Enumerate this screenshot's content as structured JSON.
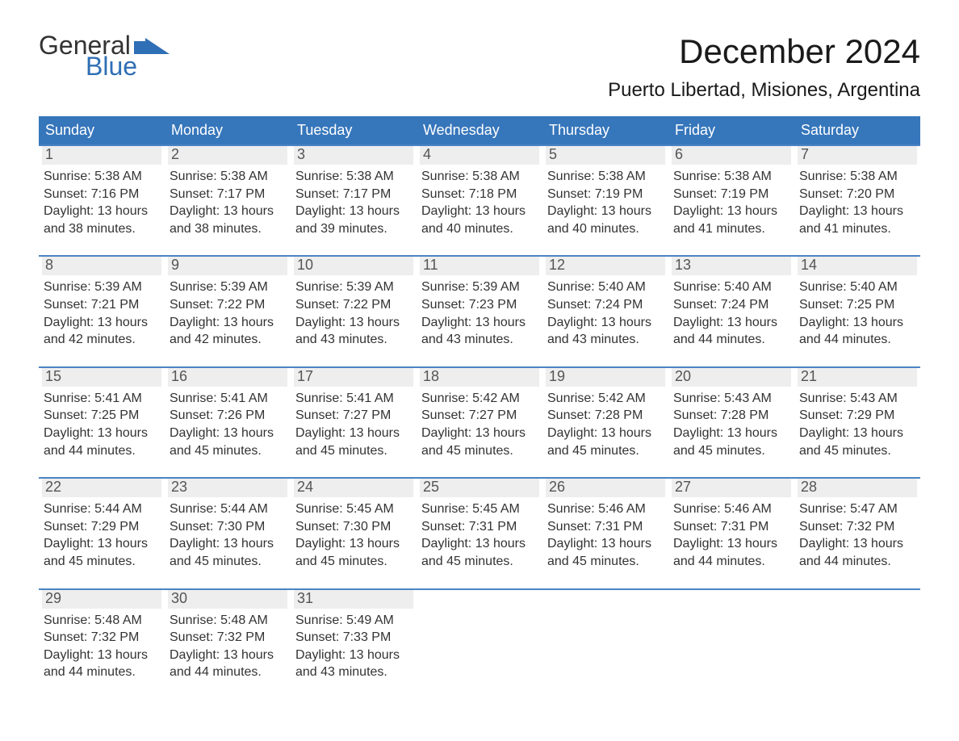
{
  "logo": {
    "text_general": "General",
    "text_blue": "Blue",
    "brand_color": "#2f6fb5"
  },
  "header": {
    "title": "December 2024",
    "location": "Puerto Libertad, Misiones, Argentina",
    "title_fontsize": 42,
    "location_fontsize": 24
  },
  "calendar": {
    "header_bg": "#3676bb",
    "header_fg": "#ffffff",
    "week_border_color": "#4b84c2",
    "daynum_bg": "#eeeeee",
    "daynum_fg": "#555555",
    "body_color": "#333333",
    "weekdays": [
      "Sunday",
      "Monday",
      "Tuesday",
      "Wednesday",
      "Thursday",
      "Friday",
      "Saturday"
    ],
    "weeks": [
      [
        {
          "n": "1",
          "sunrise": "Sunrise: 5:38 AM",
          "sunset": "Sunset: 7:16 PM",
          "daylight1": "Daylight: 13 hours",
          "daylight2": "and 38 minutes."
        },
        {
          "n": "2",
          "sunrise": "Sunrise: 5:38 AM",
          "sunset": "Sunset: 7:17 PM",
          "daylight1": "Daylight: 13 hours",
          "daylight2": "and 38 minutes."
        },
        {
          "n": "3",
          "sunrise": "Sunrise: 5:38 AM",
          "sunset": "Sunset: 7:17 PM",
          "daylight1": "Daylight: 13 hours",
          "daylight2": "and 39 minutes."
        },
        {
          "n": "4",
          "sunrise": "Sunrise: 5:38 AM",
          "sunset": "Sunset: 7:18 PM",
          "daylight1": "Daylight: 13 hours",
          "daylight2": "and 40 minutes."
        },
        {
          "n": "5",
          "sunrise": "Sunrise: 5:38 AM",
          "sunset": "Sunset: 7:19 PM",
          "daylight1": "Daylight: 13 hours",
          "daylight2": "and 40 minutes."
        },
        {
          "n": "6",
          "sunrise": "Sunrise: 5:38 AM",
          "sunset": "Sunset: 7:19 PM",
          "daylight1": "Daylight: 13 hours",
          "daylight2": "and 41 minutes."
        },
        {
          "n": "7",
          "sunrise": "Sunrise: 5:38 AM",
          "sunset": "Sunset: 7:20 PM",
          "daylight1": "Daylight: 13 hours",
          "daylight2": "and 41 minutes."
        }
      ],
      [
        {
          "n": "8",
          "sunrise": "Sunrise: 5:39 AM",
          "sunset": "Sunset: 7:21 PM",
          "daylight1": "Daylight: 13 hours",
          "daylight2": "and 42 minutes."
        },
        {
          "n": "9",
          "sunrise": "Sunrise: 5:39 AM",
          "sunset": "Sunset: 7:22 PM",
          "daylight1": "Daylight: 13 hours",
          "daylight2": "and 42 minutes."
        },
        {
          "n": "10",
          "sunrise": "Sunrise: 5:39 AM",
          "sunset": "Sunset: 7:22 PM",
          "daylight1": "Daylight: 13 hours",
          "daylight2": "and 43 minutes."
        },
        {
          "n": "11",
          "sunrise": "Sunrise: 5:39 AM",
          "sunset": "Sunset: 7:23 PM",
          "daylight1": "Daylight: 13 hours",
          "daylight2": "and 43 minutes."
        },
        {
          "n": "12",
          "sunrise": "Sunrise: 5:40 AM",
          "sunset": "Sunset: 7:24 PM",
          "daylight1": "Daylight: 13 hours",
          "daylight2": "and 43 minutes."
        },
        {
          "n": "13",
          "sunrise": "Sunrise: 5:40 AM",
          "sunset": "Sunset: 7:24 PM",
          "daylight1": "Daylight: 13 hours",
          "daylight2": "and 44 minutes."
        },
        {
          "n": "14",
          "sunrise": "Sunrise: 5:40 AM",
          "sunset": "Sunset: 7:25 PM",
          "daylight1": "Daylight: 13 hours",
          "daylight2": "and 44 minutes."
        }
      ],
      [
        {
          "n": "15",
          "sunrise": "Sunrise: 5:41 AM",
          "sunset": "Sunset: 7:25 PM",
          "daylight1": "Daylight: 13 hours",
          "daylight2": "and 44 minutes."
        },
        {
          "n": "16",
          "sunrise": "Sunrise: 5:41 AM",
          "sunset": "Sunset: 7:26 PM",
          "daylight1": "Daylight: 13 hours",
          "daylight2": "and 45 minutes."
        },
        {
          "n": "17",
          "sunrise": "Sunrise: 5:41 AM",
          "sunset": "Sunset: 7:27 PM",
          "daylight1": "Daylight: 13 hours",
          "daylight2": "and 45 minutes."
        },
        {
          "n": "18",
          "sunrise": "Sunrise: 5:42 AM",
          "sunset": "Sunset: 7:27 PM",
          "daylight1": "Daylight: 13 hours",
          "daylight2": "and 45 minutes."
        },
        {
          "n": "19",
          "sunrise": "Sunrise: 5:42 AM",
          "sunset": "Sunset: 7:28 PM",
          "daylight1": "Daylight: 13 hours",
          "daylight2": "and 45 minutes."
        },
        {
          "n": "20",
          "sunrise": "Sunrise: 5:43 AM",
          "sunset": "Sunset: 7:28 PM",
          "daylight1": "Daylight: 13 hours",
          "daylight2": "and 45 minutes."
        },
        {
          "n": "21",
          "sunrise": "Sunrise: 5:43 AM",
          "sunset": "Sunset: 7:29 PM",
          "daylight1": "Daylight: 13 hours",
          "daylight2": "and 45 minutes."
        }
      ],
      [
        {
          "n": "22",
          "sunrise": "Sunrise: 5:44 AM",
          "sunset": "Sunset: 7:29 PM",
          "daylight1": "Daylight: 13 hours",
          "daylight2": "and 45 minutes."
        },
        {
          "n": "23",
          "sunrise": "Sunrise: 5:44 AM",
          "sunset": "Sunset: 7:30 PM",
          "daylight1": "Daylight: 13 hours",
          "daylight2": "and 45 minutes."
        },
        {
          "n": "24",
          "sunrise": "Sunrise: 5:45 AM",
          "sunset": "Sunset: 7:30 PM",
          "daylight1": "Daylight: 13 hours",
          "daylight2": "and 45 minutes."
        },
        {
          "n": "25",
          "sunrise": "Sunrise: 5:45 AM",
          "sunset": "Sunset: 7:31 PM",
          "daylight1": "Daylight: 13 hours",
          "daylight2": "and 45 minutes."
        },
        {
          "n": "26",
          "sunrise": "Sunrise: 5:46 AM",
          "sunset": "Sunset: 7:31 PM",
          "daylight1": "Daylight: 13 hours",
          "daylight2": "and 45 minutes."
        },
        {
          "n": "27",
          "sunrise": "Sunrise: 5:46 AM",
          "sunset": "Sunset: 7:31 PM",
          "daylight1": "Daylight: 13 hours",
          "daylight2": "and 44 minutes."
        },
        {
          "n": "28",
          "sunrise": "Sunrise: 5:47 AM",
          "sunset": "Sunset: 7:32 PM",
          "daylight1": "Daylight: 13 hours",
          "daylight2": "and 44 minutes."
        }
      ],
      [
        {
          "n": "29",
          "sunrise": "Sunrise: 5:48 AM",
          "sunset": "Sunset: 7:32 PM",
          "daylight1": "Daylight: 13 hours",
          "daylight2": "and 44 minutes."
        },
        {
          "n": "30",
          "sunrise": "Sunrise: 5:48 AM",
          "sunset": "Sunset: 7:32 PM",
          "daylight1": "Daylight: 13 hours",
          "daylight2": "and 44 minutes."
        },
        {
          "n": "31",
          "sunrise": "Sunrise: 5:49 AM",
          "sunset": "Sunset: 7:33 PM",
          "daylight1": "Daylight: 13 hours",
          "daylight2": "and 43 minutes."
        },
        {},
        {},
        {},
        {}
      ]
    ]
  }
}
